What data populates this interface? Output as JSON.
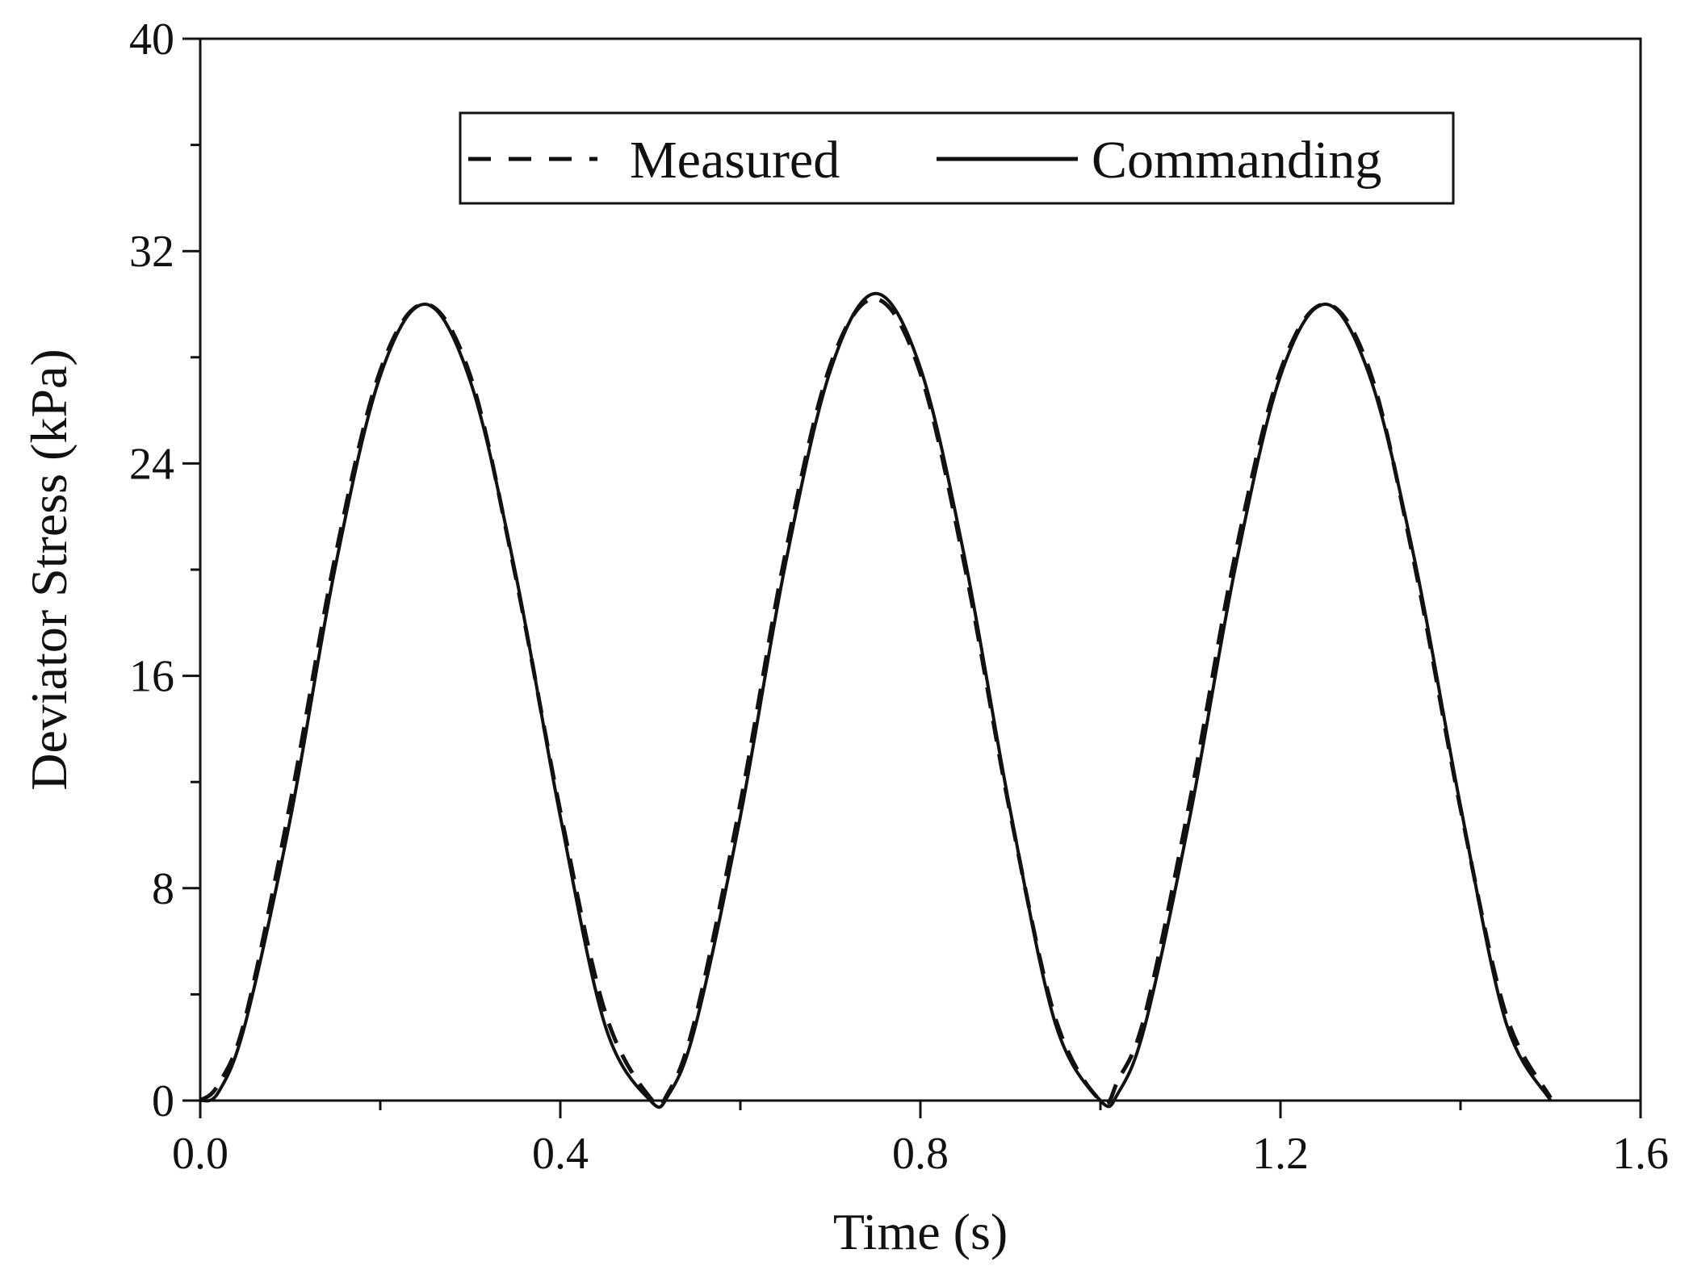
{
  "chart_data": {
    "type": "line",
    "title": "",
    "xlabel": "Time (s)",
    "ylabel": "Deviator Stress (kPa)",
    "xlim": [
      0.0,
      1.6
    ],
    "ylim": [
      0,
      40
    ],
    "xticks": [
      0.0,
      0.4,
      0.8,
      1.2,
      1.6
    ],
    "xtick_labels": [
      "0.0",
      "0.4",
      "0.8",
      "1.2",
      "1.6"
    ],
    "x_minor_step": 0.2,
    "yticks": [
      0,
      8,
      16,
      24,
      32,
      40
    ],
    "ytick_labels": [
      "0",
      "8",
      "16",
      "24",
      "32",
      "40"
    ],
    "y_minor_step": 4,
    "grid": false,
    "legend_position": "top-center",
    "series": [
      {
        "name": "Measured",
        "style": "dashed",
        "color": "#111111",
        "x": [
          0.0,
          0.02,
          0.05,
          0.1,
          0.15,
          0.2,
          0.25,
          0.3,
          0.35,
          0.4,
          0.45,
          0.5,
          0.52,
          0.55,
          0.6,
          0.65,
          0.7,
          0.75,
          0.8,
          0.85,
          0.9,
          0.95,
          1.0,
          1.02,
          1.05,
          1.1,
          1.15,
          1.2,
          1.25,
          1.3,
          1.35,
          1.4,
          1.45,
          1.5
        ],
        "values": [
          0.0,
          0.6,
          3.1,
          11.2,
          20.5,
          27.5,
          30.0,
          27.3,
          19.8,
          10.9,
          3.3,
          0.1,
          0.3,
          3.1,
          11.2,
          20.6,
          27.7,
          30.2,
          27.4,
          20.0,
          10.8,
          3.1,
          0.0,
          0.8,
          3.3,
          11.4,
          20.6,
          27.5,
          30.0,
          27.4,
          20.0,
          11.0,
          3.3,
          0.1
        ]
      },
      {
        "name": "Commanding",
        "style": "solid",
        "color": "#111111",
        "x": [
          0.0,
          0.02,
          0.05,
          0.1,
          0.15,
          0.2,
          0.25,
          0.3,
          0.35,
          0.4,
          0.45,
          0.5,
          0.52,
          0.55,
          0.6,
          0.65,
          0.7,
          0.75,
          0.8,
          0.85,
          0.9,
          0.95,
          1.0,
          1.02,
          1.05,
          1.1,
          1.15,
          1.2,
          1.25,
          1.3,
          1.35,
          1.4,
          1.45,
          1.5
        ],
        "values": [
          0.0,
          0.3,
          2.9,
          10.6,
          20.1,
          27.3,
          30.0,
          27.1,
          19.9,
          10.7,
          2.8,
          0.0,
          0.2,
          2.8,
          10.7,
          20.2,
          27.5,
          30.4,
          27.6,
          20.3,
          10.9,
          2.9,
          0.0,
          0.3,
          2.9,
          10.8,
          20.1,
          27.3,
          30.0,
          27.2,
          20.2,
          11.1,
          3.0,
          0.0
        ]
      }
    ]
  }
}
